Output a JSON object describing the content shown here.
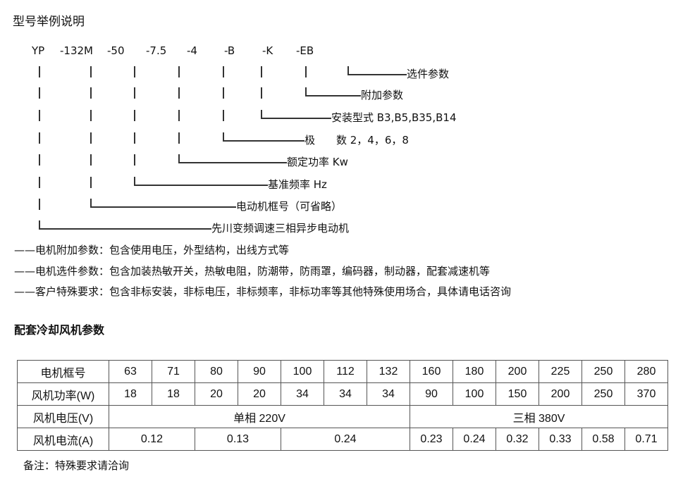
{
  "title": "型号举例说明",
  "codes": [
    "YP",
    "-132M",
    "-50",
    "-7.5",
    "-4",
    "-B",
    "-K",
    "-EB"
  ],
  "legend": [
    "选件参数",
    "附加参数",
    "安装型式 B3,B5,B35,B14",
    "极　　数 2，4，6，8",
    "额定功率 Kw",
    "基准频率 Hz",
    "电动机框号（可省略）",
    "先川变频调速三相异步电动机"
  ],
  "notes": [
    "——电机附加参数：包含使用电压，外型结构，出线方式等",
    "——电机选件参数：包含加装热敏开关，热敏电阻，防潮带，防雨罩，编码器，制动器，配套减速机等",
    "——客户特殊要求：包含非标安装，非标电压，非标频率，非标功率等其他特殊使用场合，具体请电话咨询"
  ],
  "fan_heading": "配套冷却风机参数",
  "table": {
    "frame": {
      "label": "电机框号",
      "values": [
        "63",
        "71",
        "80",
        "90",
        "100",
        "112",
        "132",
        "160",
        "180",
        "200",
        "225",
        "250",
        "280"
      ]
    },
    "power": {
      "label": "风机功率(W)",
      "values": [
        "18",
        "18",
        "20",
        "20",
        "34",
        "34",
        "34",
        "90",
        "100",
        "150",
        "200",
        "250",
        "370"
      ]
    },
    "voltage": {
      "label": "风机电压(V)",
      "values": [
        "单相 220V",
        "三相 380V"
      ]
    },
    "current": {
      "label": "风机电流(A)",
      "values": [
        "0.12",
        "0.13",
        "0.24",
        "0.23",
        "0.24",
        "0.32",
        "0.33",
        "0.58",
        "0.71"
      ]
    }
  },
  "footnote": "备注：特殊要求请洽询"
}
